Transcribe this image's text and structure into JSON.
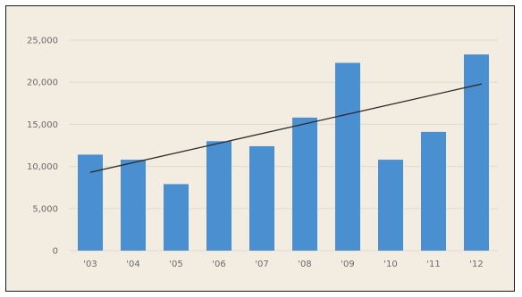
{
  "chart_data": {
    "type": "bar",
    "categories": [
      "'03",
      "'04",
      "'05",
      "'06",
      "'07",
      "'08",
      "'09",
      "'10",
      "'11",
      "'12"
    ],
    "values": [
      11400,
      10800,
      7900,
      13000,
      12400,
      15800,
      22300,
      10800,
      14100,
      23300
    ],
    "ylim": [
      0,
      25000
    ],
    "yticks": [
      0,
      5000,
      10000,
      15000,
      20000,
      25000
    ],
    "ytick_labels": [
      "0",
      "5,000",
      "10,000",
      "15,000",
      "20,000",
      "25,000"
    ],
    "trendline": {
      "from": {
        "category": "'03",
        "value": 9300
      },
      "to": {
        "category": "'12",
        "value": 19800
      }
    },
    "grid": true,
    "legend": "none",
    "colors": {
      "bar": "#4a8fcf",
      "trendline": "#2b2b2b",
      "grid": "#e2dbcf",
      "background": "#f2ece1"
    }
  }
}
